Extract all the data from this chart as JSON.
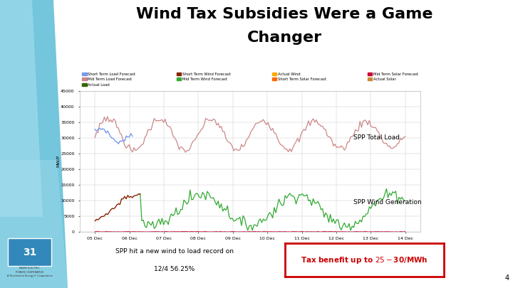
{
  "title_line1": "Wind Tax Subsidies Were a Game",
  "title_line2": "Changer",
  "title_fontsize": 16,
  "title_fontweight": "bold",
  "background_color": "#ffffff",
  "chart_bg": "#ffffff",
  "ylabel": "MW/P",
  "xlabel_ticks": [
    "05 Dec",
    "06 Dec",
    "07 Dec",
    "08 Dec",
    "09 Dec",
    "10 Dec",
    "11 Dec",
    "12 Dec",
    "13 Dec",
    "14 Dec"
  ],
  "ytick_labels": [
    "0",
    "5000",
    "10000",
    "15000",
    "20000",
    "25000",
    "30000",
    "35000",
    "40000",
    "45000"
  ],
  "ytick_values": [
    0,
    5000,
    10000,
    15000,
    20000,
    25000,
    30000,
    35000,
    40000,
    45000
  ],
  "ylim": [
    0,
    45000
  ],
  "annotation_load": "SPP Total Load",
  "annotation_wind": "SPP Wind Generation",
  "bottom_text_1": "SPP hit a new wind to load record on",
  "bottom_text_2": "12/4 56.25%",
  "tax_benefit_text": "Tax benefit up to $25-$30/MWh",
  "tax_box_color": "#cc0000",
  "legend_entries": [
    {
      "label": "Short Term Load Forecast",
      "color": "#7799ee"
    },
    {
      "label": "Mid Term Load Forecast",
      "color": "#cc8888"
    },
    {
      "label": "Actual Load",
      "color": "#336600"
    },
    {
      "label": "Short Term Wind Forecast",
      "color": "#882200"
    },
    {
      "label": "Mid Term Wind Forecast",
      "color": "#33aa33"
    },
    {
      "label": "Actual Wind",
      "color": "#ffaa00"
    },
    {
      "label": "Short Term Solar Forecast",
      "color": "#ff6600"
    },
    {
      "label": "Mid Term Solar Forecast",
      "color": "#cc0033"
    },
    {
      "label": "Actual Solar",
      "color": "#cc8833"
    }
  ],
  "load_color": "#cc8888",
  "load_short_color": "#7799ee",
  "wind_color": "#33aa33",
  "wind_dark_color": "#882200",
  "solar_flat_color": "#cc0033",
  "num_points": 200,
  "left_panel_color": "#7ec8e3",
  "left_panel_color2": "#b0dded"
}
